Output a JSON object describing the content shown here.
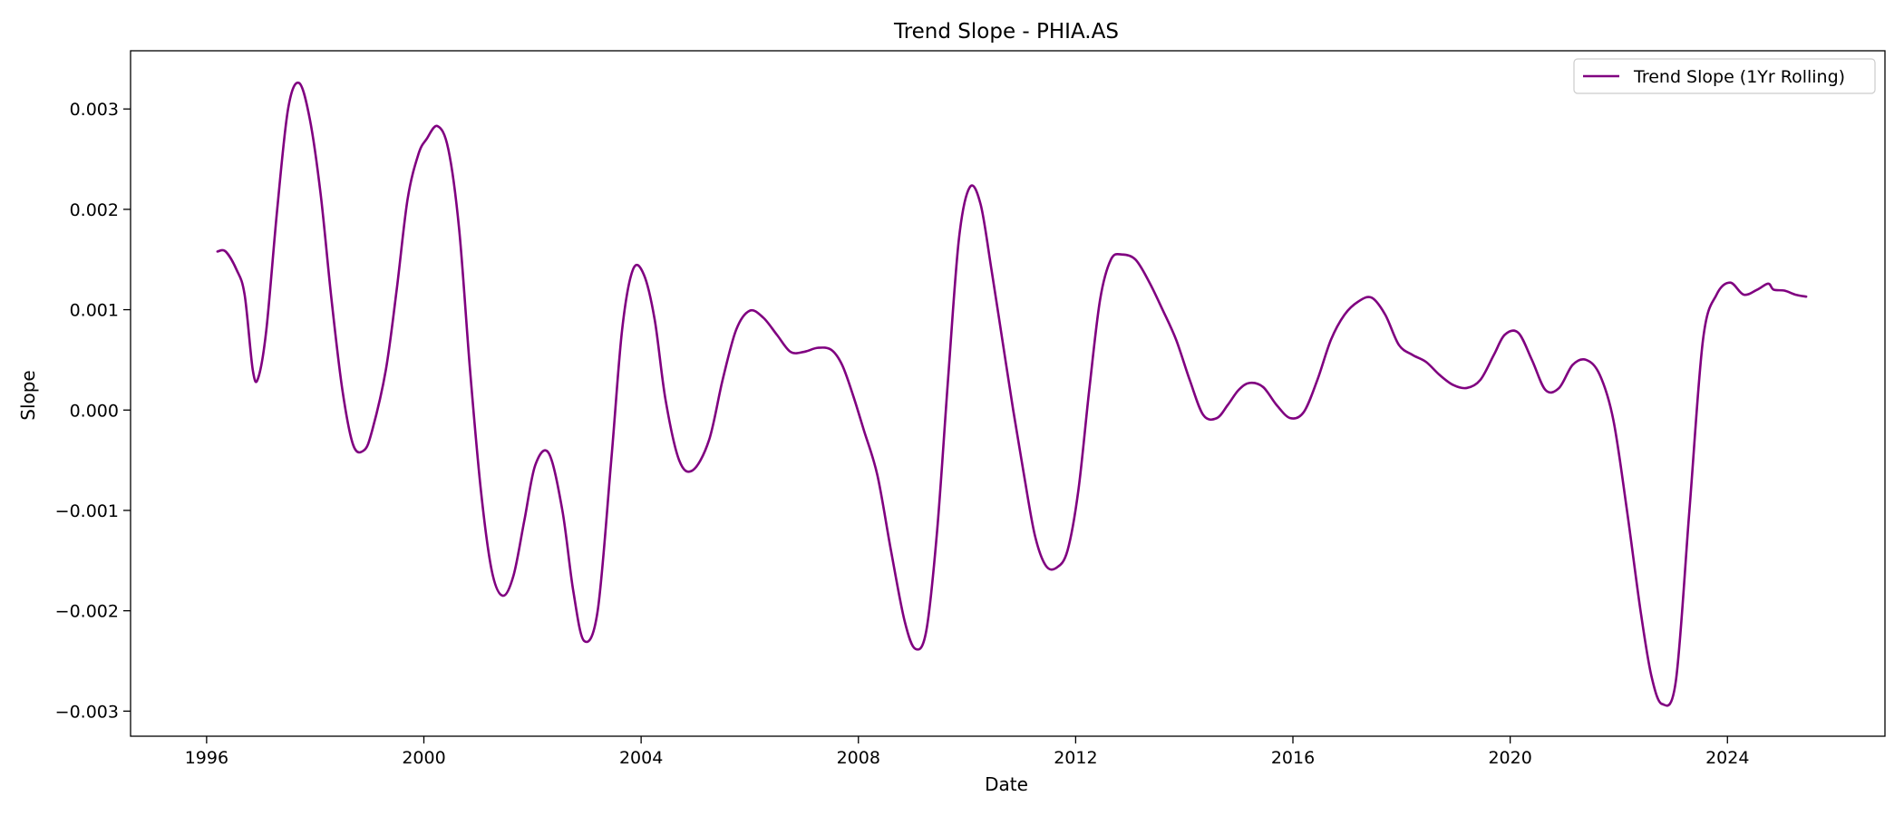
{
  "chart_data": {
    "type": "line",
    "title": "Trend Slope - PHIA.AS",
    "xlabel": "Date",
    "ylabel": "Slope",
    "x_unit": "year",
    "xlim": [
      1994.6,
      2026.9
    ],
    "ylim": [
      -0.00325,
      0.00358
    ],
    "xticks": [
      1996,
      2000,
      2004,
      2008,
      2012,
      2016,
      2020,
      2024
    ],
    "xtick_labels": [
      "1996",
      "2000",
      "2004",
      "2008",
      "2012",
      "2016",
      "2020",
      "2024"
    ],
    "yticks": [
      0.003,
      0.002,
      0.001,
      0.0,
      -0.001,
      -0.002,
      -0.003
    ],
    "ytick_labels": [
      "0.003",
      "0.002",
      "0.001",
      "0.000",
      "−0.001",
      "−0.002",
      "−0.003"
    ],
    "grid": false,
    "legend": {
      "position": "top-right",
      "entries": [
        "Trend Slope (1Yr Rolling)"
      ]
    },
    "colors": {
      "series": "#800080",
      "axes": "#000000",
      "background": "#ffffff"
    },
    "series": [
      {
        "name": "Trend Slope (1Yr Rolling)",
        "x": [
          1996.2,
          1996.35,
          1996.55,
          1996.7,
          1996.85,
          1996.95,
          1997.1,
          1997.3,
          1997.5,
          1997.7,
          1997.9,
          1998.1,
          1998.3,
          1998.5,
          1998.7,
          1998.9,
          1999.05,
          1999.3,
          1999.5,
          1999.7,
          1999.9,
          2000.05,
          2000.25,
          2000.45,
          2000.65,
          2000.85,
          2001.05,
          2001.25,
          2001.45,
          2001.65,
          2001.85,
          2002.05,
          2002.3,
          2002.55,
          2002.75,
          2002.95,
          2003.2,
          2003.45,
          2003.65,
          2003.85,
          2004.05,
          2004.25,
          2004.45,
          2004.7,
          2004.95,
          2005.25,
          2005.5,
          2005.75,
          2006.0,
          2006.25,
          2006.5,
          2006.75,
          2007.0,
          2007.25,
          2007.5,
          2007.7,
          2007.9,
          2008.1,
          2008.35,
          2008.6,
          2008.85,
          2009.05,
          2009.25,
          2009.45,
          2009.65,
          2009.85,
          2010.05,
          2010.25,
          2010.45,
          2010.65,
          2010.85,
          2011.05,
          2011.25,
          2011.45,
          2011.65,
          2011.85,
          2012.05,
          2012.25,
          2012.45,
          2012.65,
          2012.85,
          2013.1,
          2013.35,
          2013.6,
          2013.85,
          2014.1,
          2014.35,
          2014.6,
          2014.8,
          2015.0,
          2015.2,
          2015.45,
          2015.7,
          2015.95,
          2016.2,
          2016.45,
          2016.7,
          2016.95,
          2017.2,
          2017.45,
          2017.7,
          2017.95,
          2018.2,
          2018.45,
          2018.7,
          2018.95,
          2019.2,
          2019.45,
          2019.7,
          2019.9,
          2020.15,
          2020.4,
          2020.65,
          2020.9,
          2021.15,
          2021.4,
          2021.65,
          2021.9,
          2022.15,
          2022.4,
          2022.6,
          2022.8,
          2023.05,
          2023.3,
          2023.55,
          2023.8,
          2024.05,
          2024.3,
          2024.55,
          2024.75,
          2024.85,
          2025.05,
          2025.25,
          2025.45
        ],
        "y": [
          0.00158,
          0.00158,
          0.0014,
          0.00115,
          0.0004,
          0.00032,
          0.0008,
          0.002,
          0.003,
          0.00326,
          0.0029,
          0.00215,
          0.0011,
          0.0002,
          -0.00035,
          -0.0004,
          -0.0002,
          0.0004,
          0.0012,
          0.0021,
          0.00255,
          0.0027,
          0.00283,
          0.0026,
          0.0018,
          0.0004,
          -0.0008,
          -0.0016,
          -0.00185,
          -0.00165,
          -0.0011,
          -0.00055,
          -0.00043,
          -0.001,
          -0.0018,
          -0.0023,
          -0.002,
          -0.0005,
          0.0008,
          0.0014,
          0.00135,
          0.0009,
          0.0001,
          -0.0005,
          -0.0006,
          -0.0003,
          0.0003,
          0.0008,
          0.00099,
          0.00092,
          0.00075,
          0.00058,
          0.00058,
          0.00062,
          0.0006,
          0.00045,
          0.00015,
          -0.0002,
          -0.00065,
          -0.0014,
          -0.0021,
          -0.00238,
          -0.0022,
          -0.0012,
          0.0003,
          0.0017,
          0.00222,
          0.00205,
          0.0014,
          0.0007,
          0.0,
          -0.00065,
          -0.00125,
          -0.00155,
          -0.00157,
          -0.0014,
          -0.0008,
          0.0002,
          0.0011,
          0.0015,
          0.00155,
          0.0015,
          0.00128,
          0.001,
          0.0007,
          0.0003,
          -5e-05,
          -8e-05,
          5e-05,
          0.0002,
          0.00027,
          0.00023,
          5e-05,
          -8e-05,
          -2e-05,
          0.0003,
          0.0007,
          0.00095,
          0.00108,
          0.00112,
          0.00095,
          0.00065,
          0.00055,
          0.00048,
          0.00035,
          0.00025,
          0.00022,
          0.0003,
          0.00055,
          0.00075,
          0.00077,
          0.0005,
          0.0002,
          0.00022,
          0.00045,
          0.0005,
          0.00035,
          -0.0001,
          -0.001,
          -0.002,
          -0.00265,
          -0.00293,
          -0.0027,
          -0.001,
          0.0007,
          0.00115,
          0.00127,
          0.00115,
          0.0012,
          0.00126,
          0.0012,
          0.00119,
          0.00115,
          0.00113
        ]
      }
    ]
  }
}
